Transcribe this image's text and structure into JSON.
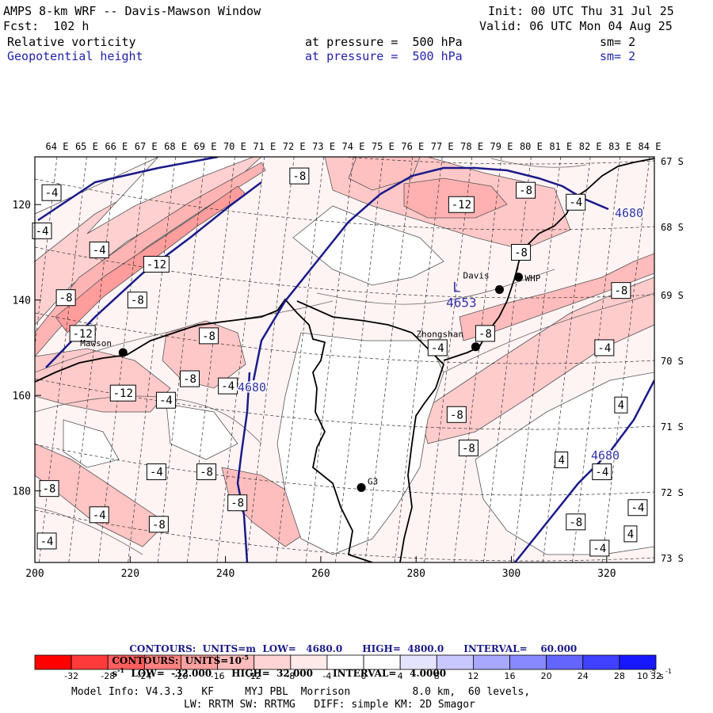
{
  "header": {
    "title": "AMPS 8-km WRF -- Davis-Mawson Window",
    "forecast": "Fcst:  102 h",
    "init": "Init: 00 UTC Thu 31 Jul 25",
    "valid": "Valid: 06 UTC Mon 04 Aug 25",
    "field1_name": "Relative vorticity",
    "field1_level": "at pressure =  500 hPa",
    "field1_smooth": "sm= 2",
    "field2_name": "Geopotential height",
    "field2_level": "at pressure =  500 hPa",
    "field2_smooth": "sm= 2"
  },
  "chart_data": {
    "type": "heatmap",
    "x_axis": {
      "range": [
        200,
        330
      ],
      "ticks": [
        200,
        220,
        240,
        260,
        280,
        300,
        320
      ],
      "tick_labels": [
        "200",
        "220",
        "240",
        "260",
        "280",
        "300",
        "320"
      ]
    },
    "y_axis": {
      "range": [
        110,
        195
      ],
      "inverted": true,
      "ticks": [
        120,
        140,
        160,
        180
      ],
      "tick_labels": [
        "120",
        "140",
        "160",
        "180"
      ]
    },
    "longitude_labels": [
      "64 E",
      "65 E",
      "66 E",
      "67 E",
      "68 E",
      "69 E",
      "70 E",
      "71 E",
      "72 E",
      "73 E",
      "74 E",
      "75 E",
      "76 E",
      "77 E",
      "78 E",
      "79 E",
      "80 E",
      "81 E",
      "82 E",
      "83 E",
      "84 E"
    ],
    "latitude_labels": [
      "67 S",
      "68 S",
      "69 S",
      "70 S",
      "71 S",
      "72 S",
      "73 S"
    ],
    "stations": [
      {
        "name": "Davis",
        "x": 297.5,
        "y": 137.8
      },
      {
        "name": "WHP",
        "x": 301.5,
        "y": 135.2
      },
      {
        "name": "Mawson",
        "x": 218.5,
        "y": 151.0
      },
      {
        "name": "Zhongshan",
        "x": 292.5,
        "y": 149.8
      },
      {
        "name": "G3",
        "x": 268.5,
        "y": 179.3
      }
    ],
    "low_center": {
      "symbol": "L",
      "value": "4653",
      "x": 289.5,
      "y": 141.0
    },
    "height_contour_label": "4680",
    "vorticity_labels": [
      {
        "text": "-4",
        "x": 203.5,
        "y": 117.5
      },
      {
        "text": "-4",
        "x": 201.5,
        "y": 125.5
      },
      {
        "text": "-4",
        "x": 213.5,
        "y": 129.5
      },
      {
        "text": "-12",
        "x": 225.5,
        "y": 132.5
      },
      {
        "text": "-8",
        "x": 206.5,
        "y": 139.5
      },
      {
        "text": "-8",
        "x": 221.5,
        "y": 140.0
      },
      {
        "text": "-12",
        "x": 210.0,
        "y": 147.0
      },
      {
        "text": "-8",
        "x": 236.5,
        "y": 147.5
      },
      {
        "text": "-8",
        "x": 232.5,
        "y": 156.5
      },
      {
        "text": "-4",
        "x": 240.5,
        "y": 158.0
      },
      {
        "text": "-12",
        "x": 218.5,
        "y": 159.5
      },
      {
        "text": "-4",
        "x": 227.5,
        "y": 161.0
      },
      {
        "text": "-4",
        "x": 225.5,
        "y": 176.0
      },
      {
        "text": "-8",
        "x": 236.0,
        "y": 176.0
      },
      {
        "text": "-8",
        "x": 203.0,
        "y": 179.5
      },
      {
        "text": "-8",
        "x": 242.5,
        "y": 182.5
      },
      {
        "text": "-4",
        "x": 213.5,
        "y": 185.0
      },
      {
        "text": "-8",
        "x": 226.0,
        "y": 187.0
      },
      {
        "text": "-4",
        "x": 202.5,
        "y": 190.5
      },
      {
        "text": "-8",
        "x": 255.5,
        "y": 114.0
      },
      {
        "text": "-12",
        "x": 289.5,
        "y": 120.0
      },
      {
        "text": "-8",
        "x": 303.0,
        "y": 117.0
      },
      {
        "text": "-4",
        "x": 313.5,
        "y": 119.5
      },
      {
        "text": "-8",
        "x": 302.0,
        "y": 130.0
      },
      {
        "text": "-8",
        "x": 323.0,
        "y": 138.0
      },
      {
        "text": "-8",
        "x": 294.5,
        "y": 147.0
      },
      {
        "text": "-4",
        "x": 284.5,
        "y": 150.0
      },
      {
        "text": "-4",
        "x": 319.5,
        "y": 150.0
      },
      {
        "text": "-8",
        "x": 288.5,
        "y": 164.0
      },
      {
        "text": "-8",
        "x": 291.0,
        "y": 171.0
      },
      {
        "text": "4",
        "x": 323.0,
        "y": 162.0
      },
      {
        "text": "4",
        "x": 310.5,
        "y": 173.5
      },
      {
        "text": "-4",
        "x": 319.0,
        "y": 176.0
      },
      {
        "text": "-4",
        "x": 326.5,
        "y": 183.5
      },
      {
        "text": "-8",
        "x": 313.5,
        "y": 186.5
      },
      {
        "text": "4",
        "x": 325.0,
        "y": 189.0
      },
      {
        "text": "-4",
        "x": 318.5,
        "y": 192.0
      }
    ],
    "footer": {
      "contours1": "CONTOURS:  UNITS=m  LOW=   4680.0      HIGH=  4800.0      INTERVAL=    60.000",
      "contours2": "CONTOURS:  UNITS=10",
      "contours2_exp": "-5",
      "contours2_unit": "s",
      "contours2_unit_exp": "-1",
      "contours2_rest": "  LOW=  -32.000      HIGH=  32.000      INTERVAL=    4.0000",
      "scale_labels": [
        "-32",
        "-28",
        "-24",
        "-20",
        "-16",
        "-12",
        "-8",
        "-4",
        "0",
        "4",
        "8",
        "12",
        "16",
        "20",
        "24",
        "28",
        "32"
      ],
      "scale_unit": "10",
      "scale_unit_exp": "-5",
      "scale_unit2": "s",
      "scale_unit2_exp": "-1",
      "scale_colors": [
        "#ff0000",
        "#ff3a3a",
        "#ff5e5e",
        "#ff8080",
        "#ffa0a0",
        "#ffbcbc",
        "#ffd4d4",
        "#ffeaea",
        "#ffffff",
        "#ffffff",
        "#e4e4ff",
        "#c8c8ff",
        "#a8a8ff",
        "#8888ff",
        "#6464ff",
        "#4040ff",
        "#1818ff"
      ],
      "model_info": "Model Info: V4.3.3   KF     MYJ PBL  Morrison          8.0 km,  60 levels,",
      "model_info2": "LW: RRTM SW: RRTMG   DIFF: simple KM: 2D Smagor"
    }
  }
}
